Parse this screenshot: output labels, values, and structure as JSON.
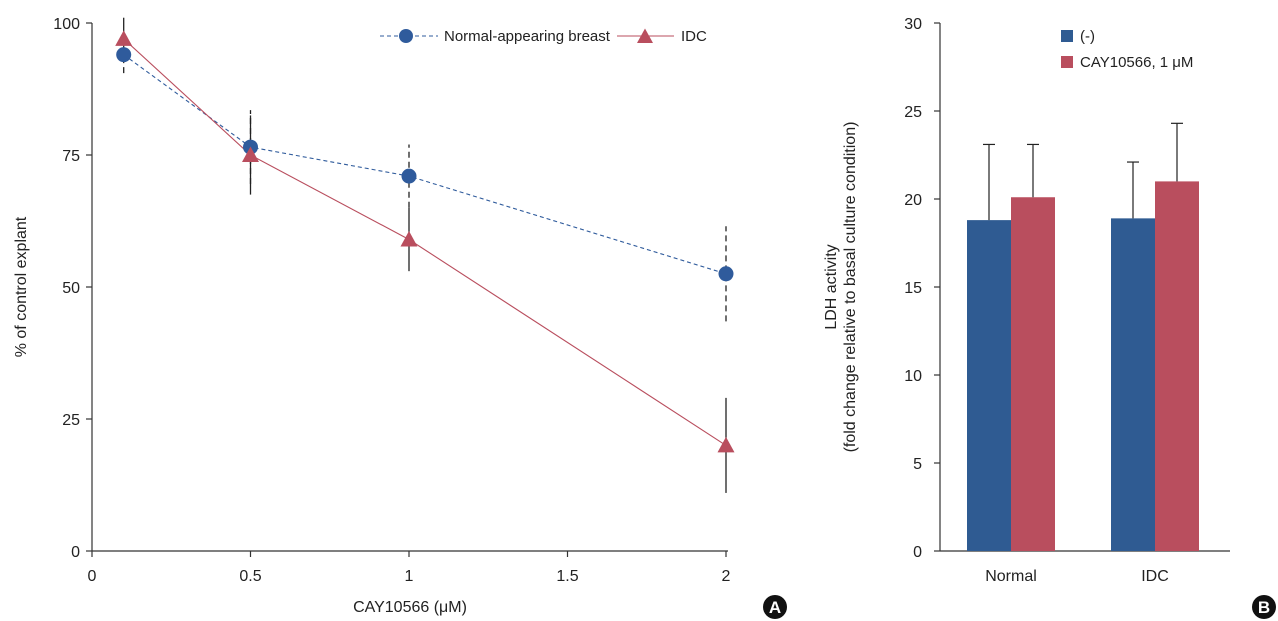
{
  "chart_data": [
    {
      "type": "line",
      "panel_label": "A",
      "xlabel": "CAY10566 (μM)",
      "ylabel": "% of control explant",
      "xlim": [
        0,
        2
      ],
      "ylim": [
        0,
        100
      ],
      "x_ticks": [
        "0",
        "0.5",
        "1",
        "1.5",
        "2"
      ],
      "y_ticks": [
        "0",
        "25",
        "50",
        "75",
        "100"
      ],
      "legend_position": "top-right",
      "series": [
        {
          "name": "Normal-appearing breast",
          "color": "#2f5b9c",
          "line_style": "dashed",
          "marker": "circle",
          "x": [
            0.1,
            0.5,
            1,
            2
          ],
          "y": [
            94,
            76.5,
            71,
            52.5
          ],
          "error": [
            3.5,
            7,
            6,
            9
          ]
        },
        {
          "name": "IDC",
          "color": "#b94e5e",
          "line_style": "solid",
          "marker": "triangle",
          "x": [
            0.1,
            0.5,
            1,
            2
          ],
          "y": [
            97,
            75,
            59,
            20
          ],
          "error": [
            4,
            7.5,
            6,
            9
          ]
        }
      ]
    },
    {
      "type": "bar",
      "panel_label": "B",
      "categories": [
        "Normal",
        "IDC"
      ],
      "ylabel_line1": "LDH activity",
      "ylabel_line2": "(fold change relative to basal culture condition)",
      "ylim": [
        0,
        30
      ],
      "y_ticks": [
        "0",
        "5",
        "10",
        "15",
        "20",
        "25",
        "30"
      ],
      "legend_position": "top-right",
      "series": [
        {
          "name": "(-)",
          "color": "#2f5b92",
          "values": [
            18.8,
            18.9
          ],
          "error": [
            4.3,
            3.2
          ]
        },
        {
          "name": "CAY10566, 1 μM",
          "color": "#b94e5e",
          "values": [
            20.1,
            21.0
          ],
          "error": [
            3.0,
            3.3
          ]
        }
      ]
    }
  ]
}
